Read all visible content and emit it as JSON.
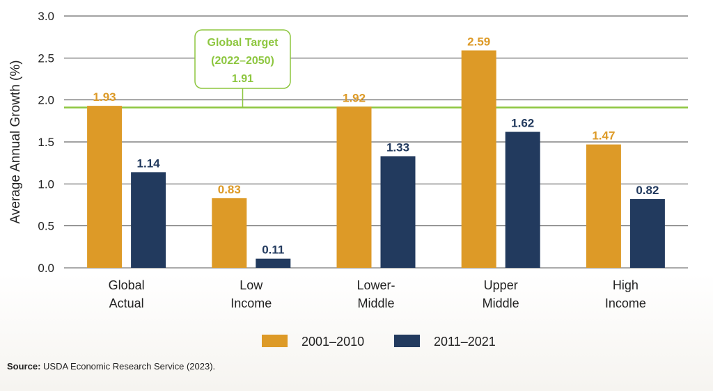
{
  "chart_data": {
    "type": "bar",
    "ylabel": "Average Annual Growth (%)",
    "ylim": [
      0,
      3.0
    ],
    "yticks": [
      "0.0",
      "0.5",
      "1.0",
      "1.5",
      "2.0",
      "2.5",
      "3.0"
    ],
    "categories": [
      [
        "Global",
        "Actual"
      ],
      [
        "Low",
        "Income"
      ],
      [
        "Lower-",
        "Middle"
      ],
      [
        "Upper",
        "Middle"
      ],
      [
        "High",
        "Income"
      ]
    ],
    "series": [
      {
        "name": "2001–2010",
        "color": "#dd9a27",
        "values": [
          1.93,
          0.83,
          1.92,
          2.59,
          1.47
        ],
        "labels": [
          "1.93",
          "0.83",
          "1.92",
          "2.59",
          "1.47"
        ]
      },
      {
        "name": "2011–2021",
        "color": "#223a5e",
        "values": [
          1.14,
          0.11,
          1.33,
          1.62,
          0.82
        ],
        "labels": [
          "1.14",
          "0.11",
          "1.33",
          "1.62",
          "0.82"
        ]
      }
    ],
    "target": {
      "value": 1.91,
      "lines": [
        "Global Target",
        "(2022–2050)",
        "1.91"
      ],
      "color": "#8dc63f"
    },
    "grid": true,
    "legend_position": "bottom"
  },
  "source": {
    "label": "Source:",
    "text": "USDA Economic Research Service (2023)."
  }
}
